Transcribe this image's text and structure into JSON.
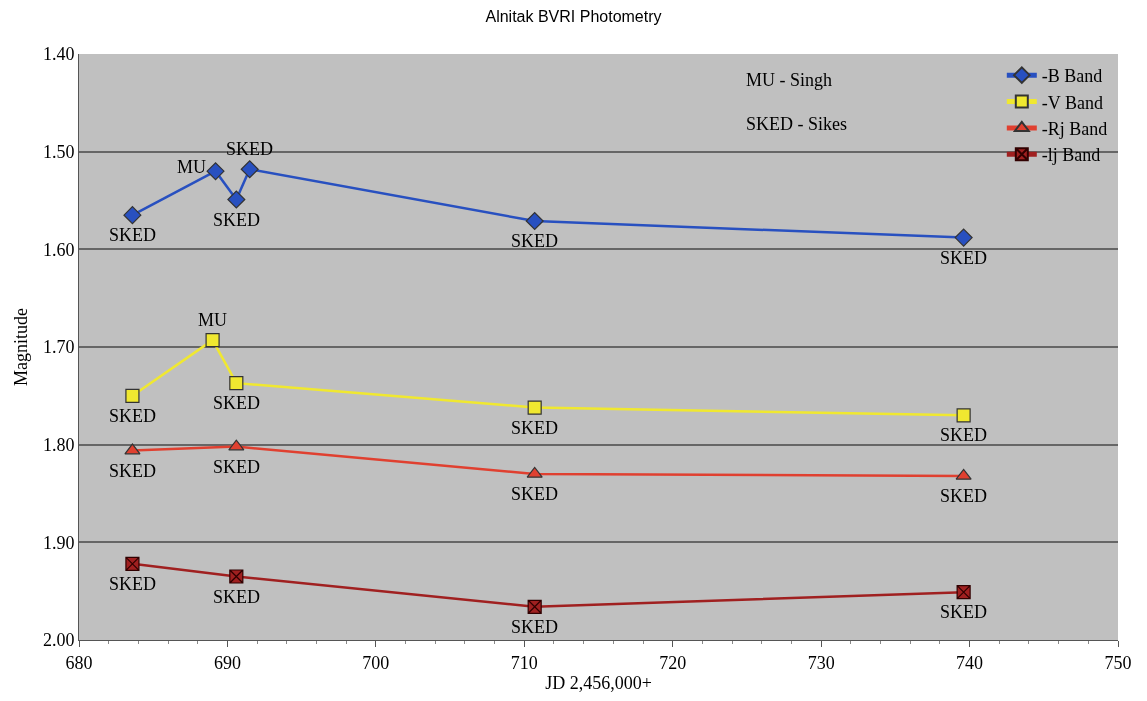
{
  "chart_data": {
    "type": "line",
    "title": "Alnitak BVRI Photometry",
    "xlabel": "JD 2,456,000+",
    "ylabel": "Magnitude",
    "xlim": [
      680,
      750
    ],
    "xticks": [
      680,
      690,
      700,
      710,
      720,
      730,
      740,
      750
    ],
    "ylim": [
      2.0,
      1.4
    ],
    "yticks": [
      {
        "value": 1.4,
        "label": "1.40"
      },
      {
        "value": 1.5,
        "label": "1.50"
      },
      {
        "value": 1.6,
        "label": "1.60"
      },
      {
        "value": 1.7,
        "label": "1.70"
      },
      {
        "value": 1.8,
        "label": "1.80"
      },
      {
        "value": 1.9,
        "label": "1.90"
      },
      {
        "value": 2.0,
        "label": "2.00"
      }
    ],
    "grid": "y",
    "legend": "top right",
    "series": [
      {
        "name": "-B Band",
        "color": "#2850c0",
        "marker": "diamond",
        "x": [
          683.6,
          689.2,
          690.6,
          691.5,
          710.7,
          739.6
        ],
        "values": [
          1.565,
          1.52,
          1.549,
          1.518,
          1.571,
          1.588
        ]
      },
      {
        "name": "-V Band",
        "color": "#f0e830",
        "marker": "square",
        "x": [
          683.6,
          689.0,
          690.6,
          710.7,
          739.6
        ],
        "values": [
          1.75,
          1.693,
          1.737,
          1.762,
          1.77
        ]
      },
      {
        "name": "-Rj Band",
        "color": "#e04030",
        "marker": "triangle",
        "x": [
          683.6,
          690.6,
          710.7,
          739.6
        ],
        "values": [
          1.806,
          1.802,
          1.83,
          1.832
        ]
      },
      {
        "name": "-lj Band",
        "color": "#a02020",
        "marker": "cross",
        "x": [
          683.6,
          690.6,
          710.7,
          739.6
        ],
        "values": [
          1.922,
          1.935,
          1.966,
          1.951
        ]
      }
    ],
    "annotations": [
      "MU - Singh",
      "SKED - Sikes",
      {
        "text": "SKED",
        "x": 683.6,
        "y": 1.565
      },
      {
        "text": "MU",
        "x": 689.2,
        "y": 1.52
      },
      {
        "text": "SKED",
        "x": 690.6,
        "y": 1.549
      },
      {
        "text": "SKED",
        "x": 691.5,
        "y": 1.518
      },
      {
        "text": "SKED",
        "x": 710.7,
        "y": 1.571
      },
      {
        "text": "SKED",
        "x": 739.6,
        "y": 1.588
      },
      {
        "text": "SKED",
        "x": 683.6,
        "y": 1.75
      },
      {
        "text": "MU",
        "x": 689.0,
        "y": 1.693
      },
      {
        "text": "SKED",
        "x": 690.6,
        "y": 1.737
      },
      {
        "text": "SKED",
        "x": 710.7,
        "y": 1.762
      },
      {
        "text": "SKED",
        "x": 739.6,
        "y": 1.77
      },
      {
        "text": "SKED",
        "x": 683.6,
        "y": 1.806
      },
      {
        "text": "SKED",
        "x": 690.6,
        "y": 1.802
      },
      {
        "text": "SKED",
        "x": 710.7,
        "y": 1.83
      },
      {
        "text": "SKED",
        "x": 739.6,
        "y": 1.832
      },
      {
        "text": "SKED",
        "x": 683.6,
        "y": 1.922
      },
      {
        "text": "SKED",
        "x": 690.6,
        "y": 1.935
      },
      {
        "text": "SKED",
        "x": 710.7,
        "y": 1.966
      },
      {
        "text": "SKED",
        "x": 739.6,
        "y": 1.951
      }
    ]
  }
}
